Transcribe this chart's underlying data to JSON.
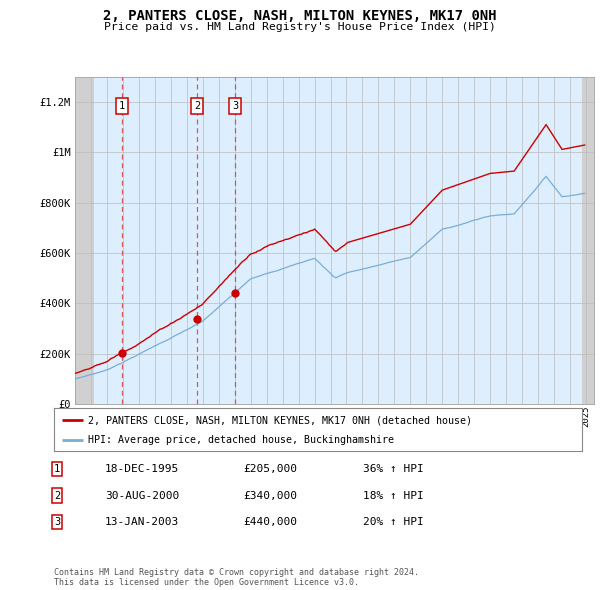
{
  "title": "2, PANTERS CLOSE, NASH, MILTON KEYNES, MK17 0NH",
  "subtitle": "Price paid vs. HM Land Registry's House Price Index (HPI)",
  "property_label": "2, PANTERS CLOSE, NASH, MILTON KEYNES, MK17 0NH (detached house)",
  "hpi_label": "HPI: Average price, detached house, Buckinghamshire",
  "footer": "Contains HM Land Registry data © Crown copyright and database right 2024.\nThis data is licensed under the Open Government Licence v3.0.",
  "sales": [
    {
      "num": 1,
      "date": "18-DEC-1995",
      "price": 205000,
      "hpi_pct": "36% ↑ HPI",
      "x_year": 1995.96
    },
    {
      "num": 2,
      "date": "30-AUG-2000",
      "price": 340000,
      "hpi_pct": "18% ↑ HPI",
      "x_year": 2000.66
    },
    {
      "num": 3,
      "date": "13-JAN-2003",
      "price": 440000,
      "hpi_pct": "20% ↑ HPI",
      "x_year": 2003.04
    }
  ],
  "xlim": [
    1993,
    2025.5
  ],
  "ylim": [
    0,
    1300000
  ],
  "yticks": [
    0,
    200000,
    400000,
    600000,
    800000,
    1000000,
    1200000
  ],
  "ytick_labels": [
    "£0",
    "£200K",
    "£400K",
    "£600K",
    "£800K",
    "£1M",
    "£1.2M"
  ],
  "xticks": [
    1993,
    1994,
    1995,
    1996,
    1997,
    1998,
    1999,
    2000,
    2001,
    2002,
    2003,
    2004,
    2005,
    2006,
    2007,
    2008,
    2009,
    2010,
    2011,
    2012,
    2013,
    2014,
    2015,
    2016,
    2017,
    2018,
    2019,
    2020,
    2021,
    2022,
    2023,
    2024,
    2025
  ],
  "property_color": "#cc0000",
  "hpi_color": "#7aadd4",
  "bg_color": "#ddeeff",
  "hatch_bg": "#d0d0d0",
  "grid_color": "#bbbbbb",
  "dashed_line_color": "#dd4444",
  "hatch_left_end": 1994.17,
  "hatch_right_start": 2024.75
}
